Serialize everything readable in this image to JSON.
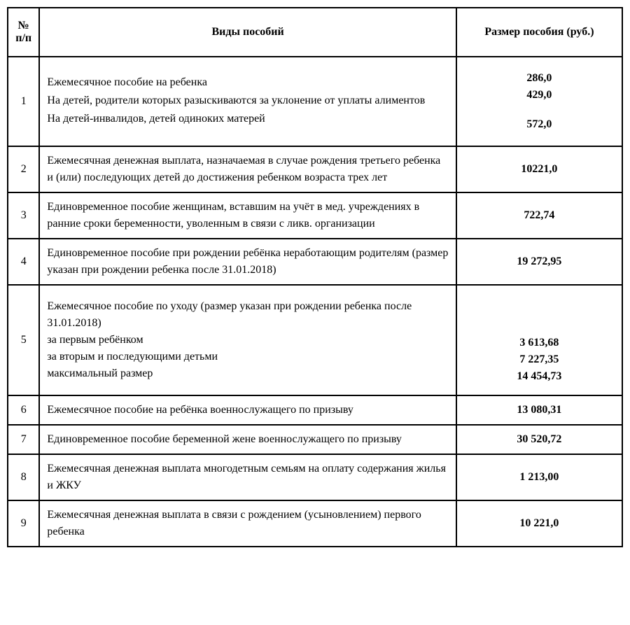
{
  "headers": {
    "num": "№ п/п",
    "desc": "Виды пособий",
    "amount": "Размер пособия (руб.)"
  },
  "rows": [
    {
      "num": "1",
      "desc_lines": [
        "Ежемесячное пособие на ребенка",
        "На детей, родители которых разыскиваются за уклонение от уплаты алиментов",
        "На детей-инвалидов, детей одиноких матерей"
      ],
      "amount_lines": [
        "286,0",
        "429,0",
        "572,0"
      ]
    },
    {
      "num": "2",
      "desc_lines": [
        "Ежемесячная денежная выплата, назначаемая в случае рождения третьего ребенка и (или) последующих детей до достижения ребенком возраста трех лет"
      ],
      "amount_lines": [
        "10221,0"
      ]
    },
    {
      "num": "3",
      "desc_lines": [
        "Единовременное пособие женщинам, вставшим на учёт в мед. учреждениях в ранние сроки беременности, уволенным в связи с ликв. организации"
      ],
      "amount_lines": [
        "722,74"
      ]
    },
    {
      "num": "4",
      "desc_lines": [
        "Единовременное пособие при рождении ребёнка неработающим родителям (размер указан при рождении ребенка после 31.01.2018)"
      ],
      "amount_lines": [
        "19 272,95"
      ]
    },
    {
      "num": "5",
      "desc_lines": [
        "Ежемесячное пособие по уходу (размер указан при рождении ребенка после 31.01.2018)",
        " за первым ребёнком",
        "за вторым и последующими детьми",
        "максимальный размер"
      ],
      "amount_lines": [
        "3 613,68",
        "7 227,35",
        "14 454,73"
      ]
    },
    {
      "num": "6",
      "desc_lines": [
        "Ежемесячное пособие на ребёнка военнослужащего по призыву"
      ],
      "amount_lines": [
        "13 080,31"
      ]
    },
    {
      "num": "7",
      "desc_lines": [
        "Единовременное пособие беременной жене военнослужащего по призыву"
      ],
      "amount_lines": [
        "30 520,72"
      ]
    },
    {
      "num": "8",
      "desc_lines": [
        "Ежемесячная денежная выплата многодетным семьям на оплату содержания жилья и ЖКУ"
      ],
      "amount_lines": [
        "1 213,00"
      ]
    },
    {
      "num": "9",
      "desc_lines": [
        "Ежемесячная денежная выплата в связи с рождением (усыновлением) первого ребенка"
      ],
      "amount_lines": [
        "10 221,0"
      ]
    }
  ],
  "styles": {
    "font_family": "Times New Roman",
    "font_size_pt": 14,
    "border_color": "#000000",
    "background_color": "#ffffff",
    "text_color": "#000000"
  }
}
